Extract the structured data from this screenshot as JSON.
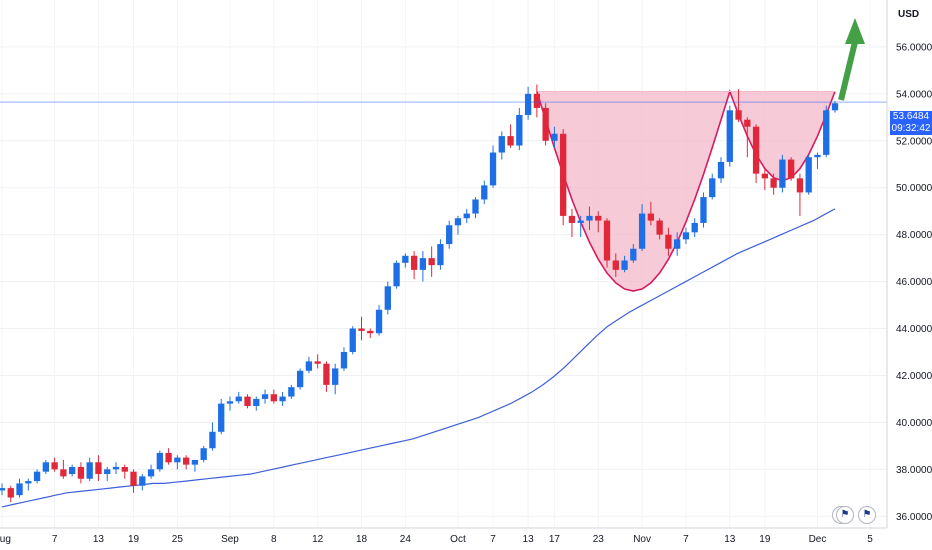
{
  "chart_data": {
    "type": "candlestick",
    "currency_label": "USD",
    "current_price": "53.6484",
    "countdown": "09:32:42",
    "ylim": [
      35.5,
      58.0
    ],
    "y_ticks": [
      36,
      38,
      40,
      42,
      44,
      46,
      48,
      50,
      52,
      54,
      56
    ],
    "y_tick_labels": [
      "36.0000",
      "38.0000",
      "40.0000",
      "42.0000",
      "44.0000",
      "46.0000",
      "48.0000",
      "50.0000",
      "52.0000",
      "54.0000",
      "56.0000"
    ],
    "x_ticks": [
      "Aug",
      "7",
      "13",
      "19",
      "25",
      "Sep",
      "8",
      "12",
      "18",
      "24",
      "Oct",
      "7",
      "13",
      "17",
      "23",
      "Nov",
      "7",
      "13",
      "19",
      "Dec",
      "5"
    ],
    "colors": {
      "up": "#1e6fe6",
      "down": "#e0283a",
      "ma": "#3d5fd9",
      "pattern_fill": "#f3b8c8",
      "pattern_line": "#d81b60",
      "arrow": "#43a047",
      "price_line": "#2962ff"
    },
    "candles": [
      [
        37.1,
        37.4,
        36.9,
        37.2
      ],
      [
        37.2,
        37.3,
        36.6,
        36.8
      ],
      [
        36.9,
        37.6,
        36.8,
        37.4
      ],
      [
        37.4,
        37.6,
        37.1,
        37.5
      ],
      [
        37.5,
        38.0,
        37.4,
        37.9
      ],
      [
        37.9,
        38.4,
        37.8,
        38.3
      ],
      [
        38.3,
        38.5,
        37.9,
        38.0
      ],
      [
        38.0,
        38.4,
        37.6,
        37.7
      ],
      [
        37.8,
        38.2,
        37.7,
        38.1
      ],
      [
        38.1,
        38.3,
        37.4,
        37.6
      ],
      [
        37.6,
        38.5,
        37.5,
        38.3
      ],
      [
        38.3,
        38.6,
        37.5,
        37.8
      ],
      [
        37.8,
        38.1,
        37.5,
        38.0
      ],
      [
        38.0,
        38.3,
        37.8,
        38.1
      ],
      [
        38.1,
        38.2,
        37.6,
        37.9
      ],
      [
        37.9,
        38.0,
        37.0,
        37.3
      ],
      [
        37.3,
        37.8,
        37.1,
        37.7
      ],
      [
        37.7,
        38.2,
        37.6,
        38.0
      ],
      [
        38.0,
        38.8,
        37.9,
        38.7
      ],
      [
        38.7,
        38.9,
        38.2,
        38.3
      ],
      [
        38.3,
        38.6,
        38.0,
        38.5
      ],
      [
        38.5,
        38.6,
        38.0,
        38.2
      ],
      [
        38.2,
        38.4,
        37.9,
        38.4
      ],
      [
        38.4,
        39.0,
        38.3,
        38.9
      ],
      [
        38.9,
        40.0,
        38.8,
        39.6
      ],
      [
        39.6,
        41.0,
        39.5,
        40.8
      ],
      [
        40.8,
        41.1,
        40.5,
        40.9
      ],
      [
        40.9,
        41.3,
        40.8,
        41.1
      ],
      [
        41.1,
        41.2,
        40.6,
        40.7
      ],
      [
        40.7,
        41.1,
        40.5,
        41.0
      ],
      [
        41.0,
        41.4,
        40.8,
        41.2
      ],
      [
        41.2,
        41.4,
        40.8,
        40.9
      ],
      [
        40.9,
        41.3,
        40.7,
        41.1
      ],
      [
        41.1,
        41.6,
        41.0,
        41.5
      ],
      [
        41.5,
        42.3,
        41.4,
        42.2
      ],
      [
        42.2,
        42.8,
        42.1,
        42.6
      ],
      [
        42.6,
        42.9,
        42.3,
        42.5
      ],
      [
        42.5,
        42.6,
        41.3,
        41.6
      ],
      [
        41.6,
        42.5,
        41.2,
        42.3
      ],
      [
        42.3,
        43.2,
        42.2,
        43.0
      ],
      [
        43.0,
        44.1,
        42.9,
        44.0
      ],
      [
        44.0,
        44.5,
        43.5,
        43.9
      ],
      [
        43.9,
        44.0,
        43.6,
        43.8
      ],
      [
        43.8,
        45.0,
        43.7,
        44.8
      ],
      [
        44.8,
        46.0,
        44.6,
        45.8
      ],
      [
        45.8,
        46.9,
        45.7,
        46.8
      ],
      [
        46.8,
        47.2,
        46.6,
        47.1
      ],
      [
        47.1,
        47.3,
        46.1,
        46.5
      ],
      [
        46.5,
        47.3,
        46.0,
        47.0
      ],
      [
        47.0,
        47.5,
        46.2,
        46.7
      ],
      [
        46.7,
        47.8,
        46.5,
        47.6
      ],
      [
        47.6,
        48.6,
        47.4,
        48.4
      ],
      [
        48.4,
        48.8,
        48.0,
        48.7
      ],
      [
        48.7,
        49.1,
        48.5,
        48.9
      ],
      [
        48.9,
        49.6,
        48.7,
        49.5
      ],
      [
        49.5,
        50.3,
        49.3,
        50.1
      ],
      [
        50.1,
        51.8,
        50.0,
        51.5
      ],
      [
        51.5,
        52.4,
        51.2,
        52.2
      ],
      [
        52.2,
        52.7,
        51.7,
        51.8
      ],
      [
        51.8,
        53.4,
        51.6,
        53.1
      ],
      [
        53.1,
        54.3,
        52.9,
        54.0
      ],
      [
        54.0,
        54.4,
        53.0,
        53.4
      ],
      [
        53.4,
        53.6,
        51.8,
        52.0
      ],
      [
        52.0,
        52.6,
        51.7,
        52.3
      ],
      [
        52.3,
        52.5,
        48.4,
        48.8
      ],
      [
        48.8,
        49.1,
        47.9,
        48.5
      ],
      [
        48.5,
        48.8,
        47.9,
        48.6
      ],
      [
        48.6,
        49.2,
        48.2,
        48.8
      ],
      [
        48.8,
        49.0,
        48.1,
        48.6
      ],
      [
        48.6,
        48.7,
        46.6,
        46.9
      ],
      [
        46.9,
        47.2,
        46.2,
        46.5
      ],
      [
        46.5,
        47.1,
        46.4,
        46.9
      ],
      [
        46.9,
        47.6,
        46.8,
        47.4
      ],
      [
        47.4,
        49.3,
        47.3,
        48.9
      ],
      [
        48.9,
        49.4,
        48.4,
        48.6
      ],
      [
        48.6,
        48.7,
        47.8,
        48.0
      ],
      [
        48.0,
        48.3,
        47.1,
        47.4
      ],
      [
        47.4,
        48.1,
        47.1,
        47.8
      ],
      [
        47.8,
        48.3,
        47.6,
        48.1
      ],
      [
        48.1,
        48.7,
        47.9,
        48.5
      ],
      [
        48.5,
        49.8,
        48.3,
        49.6
      ],
      [
        49.6,
        50.6,
        49.5,
        50.4
      ],
      [
        50.4,
        51.3,
        50.2,
        51.1
      ],
      [
        51.1,
        53.5,
        50.9,
        53.3
      ],
      [
        53.3,
        54.2,
        52.8,
        52.9
      ],
      [
        52.9,
        53.0,
        51.3,
        52.6
      ],
      [
        52.6,
        52.7,
        50.2,
        50.6
      ],
      [
        50.6,
        50.8,
        49.9,
        50.4
      ],
      [
        50.4,
        50.6,
        49.7,
        50.0
      ],
      [
        50.0,
        51.4,
        49.8,
        51.2
      ],
      [
        51.2,
        51.3,
        50.3,
        50.4
      ],
      [
        50.4,
        50.6,
        48.8,
        49.8
      ],
      [
        49.8,
        51.4,
        49.7,
        51.3
      ],
      [
        51.3,
        51.5,
        50.8,
        51.4
      ],
      [
        51.4,
        53.5,
        51.3,
        53.3
      ],
      [
        53.3,
        53.7,
        53.2,
        53.6
      ]
    ],
    "ma_line": [
      [
        36.4,
        36.5,
        36.6,
        36.7,
        36.8,
        36.9,
        37.0,
        37.05,
        37.1,
        37.15,
        37.2,
        37.25,
        37.3,
        37.35,
        37.4,
        37.4,
        37.45,
        37.5,
        37.55,
        37.6,
        37.65,
        37.7,
        37.75,
        37.8,
        37.9,
        38.0,
        38.1,
        38.2,
        38.3,
        38.4,
        38.5,
        38.6,
        38.7,
        38.8,
        38.9,
        39.0,
        39.1,
        39.2,
        39.3,
        39.45,
        39.6,
        39.75,
        39.9,
        40.05,
        40.2,
        40.4,
        40.6,
        40.8,
        41.05,
        41.3,
        41.6,
        41.95,
        42.35,
        42.8,
        43.25,
        43.7,
        44.1,
        44.4,
        44.7,
        44.95,
        45.2,
        45.45,
        45.7,
        45.95,
        46.2,
        46.45,
        46.7,
        46.95,
        47.2,
        47.4,
        47.6,
        47.8,
        48.0,
        48.2,
        48.4,
        48.6,
        48.85,
        49.1
      ]
    ],
    "annotations": [
      "cup-and-handle-pattern",
      "breakout-arrow"
    ]
  },
  "toolbar_icons": [
    "flash-icon",
    "us-flag-icon",
    "us-flag-icon"
  ]
}
